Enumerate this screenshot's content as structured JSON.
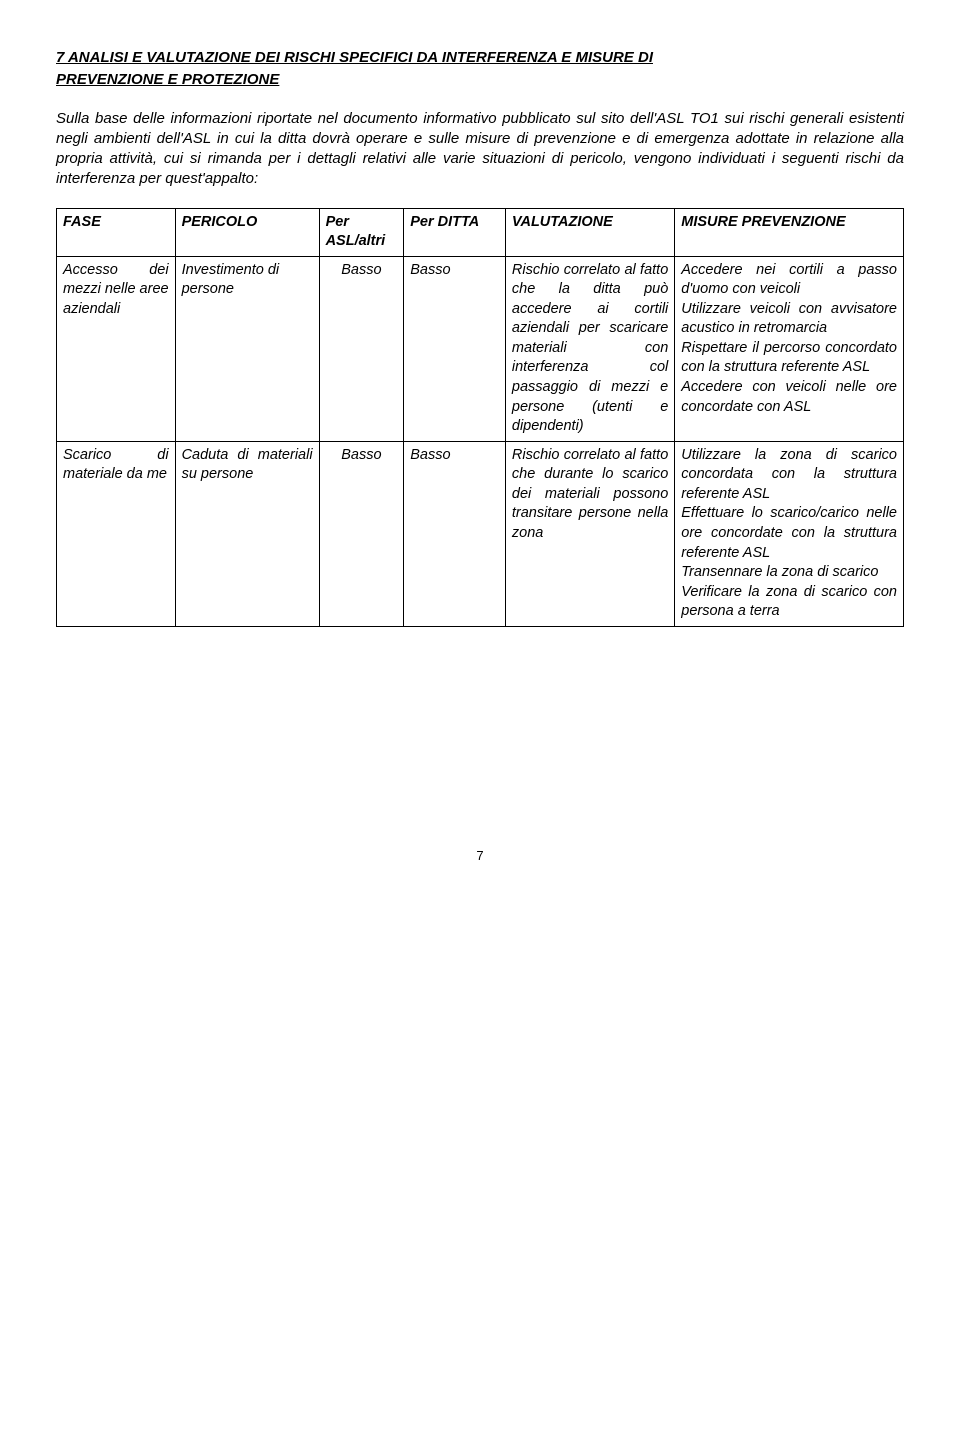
{
  "title_line1": "7 ANALISI E VALUTAZIONE DEI RISCHI SPECIFICI DA INTERFERENZA E MISURE DI",
  "title_line2": "PREVENZIONE E PROTEZIONE",
  "intro": "Sulla base delle informazioni riportate nel documento informativo pubblicato sul sito dell'ASL TO1 sui rischi generali esistenti negli ambienti dell'ASL in cui la ditta dovrà operare e sulle misure di prevenzione e di emergenza adottate in relazione alla propria attività, cui si rimanda per i dettagli relativi alle varie situazioni di pericolo, vengono individuati i seguenti rischi da interferenza per quest'appalto:",
  "headers": {
    "fase": "FASE",
    "pericolo": "PERICOLO",
    "per_asl": "Per ASL/altri",
    "per_ditta": "Per DITTA",
    "valutazione": "VALUTAZIONE",
    "misure": "MISURE PREVENZIONE"
  },
  "row1": {
    "fase": "Accesso dei mezzi nelle aree aziendali",
    "pericolo": "Investimento di persone",
    "per_asl": "Basso",
    "per_ditta": "Basso",
    "valutazione": "Rischio correlato al fatto che la ditta può accedere ai cortili aziendali per scaricare materiali con interferenza col passaggio di mezzi e persone (utenti e dipendenti)",
    "misure": "Accedere nei cortili a passo d'uomo con veicoli\nUtilizzare veicoli con avvisatore acustico in retromarcia\nRispettare il percorso concordato con la struttura referente ASL\nAccedere con veicoli nelle ore concordate con ASL"
  },
  "row2": {
    "fase": "Scarico di materiale da me",
    "pericolo": "Caduta di materiali su persone",
    "per_asl": "Basso",
    "per_ditta": "Basso",
    "valutazione": "Rischio correlato al fatto che durante lo scarico dei materiali possono transitare persone nella zona",
    "misure": "Utilizzare la zona di scarico concordata con la struttura referente ASL\nEffettuare lo scarico/carico nelle ore concordate con la struttura referente ASL\nTransennare la zona di scarico\nVerificare la zona di scarico con persona a terra"
  },
  "page_number": "7"
}
